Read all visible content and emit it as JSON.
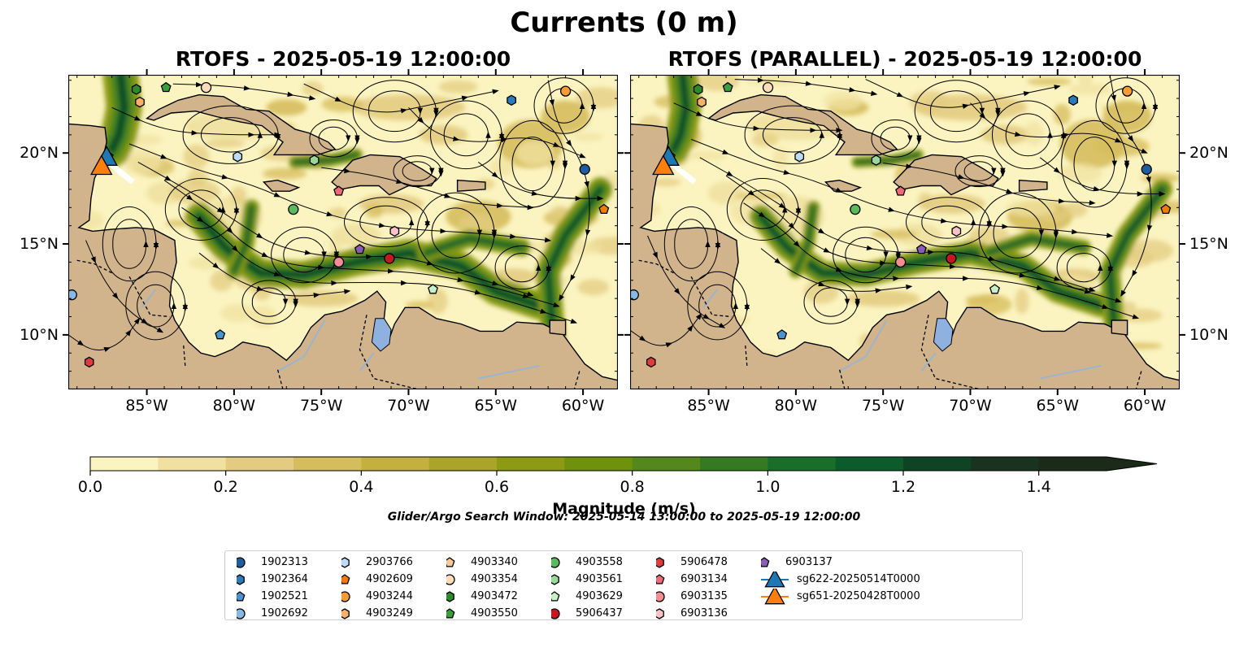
{
  "figure": {
    "title": "Currents (0 m)",
    "panel_titles": [
      "RTOFS - 2025-05-19 12:00:00",
      "RTOFS (PARALLEL) - 2025-05-19 12:00:00"
    ],
    "search_window": "Glider/Argo Search Window: 2025-05-14 13:00:00 to 2025-05-19 12:00:00"
  },
  "colors": {
    "land": "#d1b48c",
    "lake": "#8fb1e0",
    "coast": "#000000",
    "streamline": "#000000"
  },
  "chart_data": {
    "type": "heatmap",
    "variable": "current magnitude with streamlines",
    "xlim": [
      -89.5,
      -58
    ],
    "ylim": [
      7,
      24.3
    ],
    "x_ticks": [
      -85,
      -80,
      -75,
      -70,
      -65,
      -60
    ],
    "x_tick_labels": [
      "85°W",
      "80°W",
      "75°W",
      "70°W",
      "65°W",
      "60°W"
    ],
    "y_ticks": [
      10,
      15,
      20
    ],
    "y_tick_labels": [
      "10°N",
      "15°N",
      "20°N"
    ],
    "colorbar": {
      "label": "Magnitude (m/s)",
      "min": 0,
      "max": 1.5,
      "step": 0.1,
      "extend": "max",
      "ticks": [
        0,
        0.2,
        0.4,
        0.6,
        0.8,
        1.0,
        1.2,
        1.4
      ],
      "tick_labels": [
        "0.0",
        "0.2",
        "0.4",
        "0.6",
        "0.8",
        "1.0",
        "1.2",
        "1.4"
      ],
      "colors": [
        "#fbf4c0",
        "#f0e1a0",
        "#e3cc82",
        "#d5bc5c",
        "#c4b03e",
        "#aaa52a",
        "#8c9a14",
        "#6f910c",
        "#55881c",
        "#357a22",
        "#1b6e2a",
        "#0d5a2b",
        "#0e4323",
        "#1a3320",
        "#1c2a1a"
      ]
    },
    "series": [
      {
        "name": "1902313",
        "marker": "circle",
        "color": "#1f5e9e",
        "lon": -59.9,
        "lat": 19.1
      },
      {
        "name": "1902364",
        "marker": "hexagon",
        "color": "#2b7bba",
        "lon": -64.1,
        "lat": 22.9
      },
      {
        "name": "1902521",
        "marker": "pentagon",
        "color": "#4a92d0",
        "lon": -80.8,
        "lat": 10.0
      },
      {
        "name": "1902692",
        "marker": "circle",
        "color": "#86b9e6",
        "lon": -89.3,
        "lat": 12.2
      },
      {
        "name": "2903766",
        "marker": "hexagon",
        "color": "#bcdcf5",
        "lon": -79.8,
        "lat": 19.8
      },
      {
        "name": "4902609",
        "marker": "pentagon",
        "color": "#f07a10",
        "lon": -58.8,
        "lat": 16.9
      },
      {
        "name": "4903244",
        "marker": "circle",
        "color": "#f89a38",
        "lon": -61.0,
        "lat": 23.4
      },
      {
        "name": "4903249",
        "marker": "hexagon",
        "color": "#f9b06a",
        "lon": -85.4,
        "lat": 22.8
      },
      {
        "name": "4903340",
        "marker": "pentagon",
        "color": "#fcc898",
        "lon": -87.2,
        "lat": 19.8
      },
      {
        "name": "4903354",
        "marker": "circle",
        "color": "#fddcbc",
        "lon": -81.6,
        "lat": 23.6
      },
      {
        "name": "4903472",
        "marker": "hexagon",
        "color": "#2c8a2c",
        "lon": -85.6,
        "lat": 23.5
      },
      {
        "name": "4903550",
        "marker": "pentagon",
        "color": "#3c9e3c",
        "lon": -83.9,
        "lat": 23.6
      },
      {
        "name": "4903558",
        "marker": "circle",
        "color": "#5cba5c",
        "lon": -76.6,
        "lat": 16.9
      },
      {
        "name": "4903561",
        "marker": "hexagon",
        "color": "#98d898",
        "lon": -75.4,
        "lat": 19.6
      },
      {
        "name": "4903629",
        "marker": "pentagon",
        "color": "#c8f0c8",
        "lon": -68.6,
        "lat": 12.5
      },
      {
        "name": "5906437",
        "marker": "circle",
        "color": "#c8161e",
        "lon": -71.1,
        "lat": 14.2
      },
      {
        "name": "5906478",
        "marker": "hexagon",
        "color": "#dd3c3c",
        "lon": -88.3,
        "lat": 8.5
      },
      {
        "name": "6903134",
        "marker": "pentagon",
        "color": "#ee6a76",
        "lon": -74.0,
        "lat": 17.9
      },
      {
        "name": "6903135",
        "marker": "circle",
        "color": "#f48c92",
        "lon": -74.0,
        "lat": 14.0
      },
      {
        "name": "6903136",
        "marker": "hexagon",
        "color": "#f9c2c6",
        "lon": -70.8,
        "lat": 15.7
      },
      {
        "name": "6903137",
        "marker": "pentagon",
        "color": "#8a5cb4",
        "lon": -72.8,
        "lat": 14.7
      },
      {
        "name": "sg622-20250514T0000",
        "marker": "triangle",
        "color": "#1f77b4",
        "lon": -87.3,
        "lat": 19.7
      },
      {
        "name": "sg651-20250428T0000",
        "marker": "triangle",
        "color": "#ff7f0e",
        "lon": -87.6,
        "lat": 19.2
      }
    ]
  }
}
